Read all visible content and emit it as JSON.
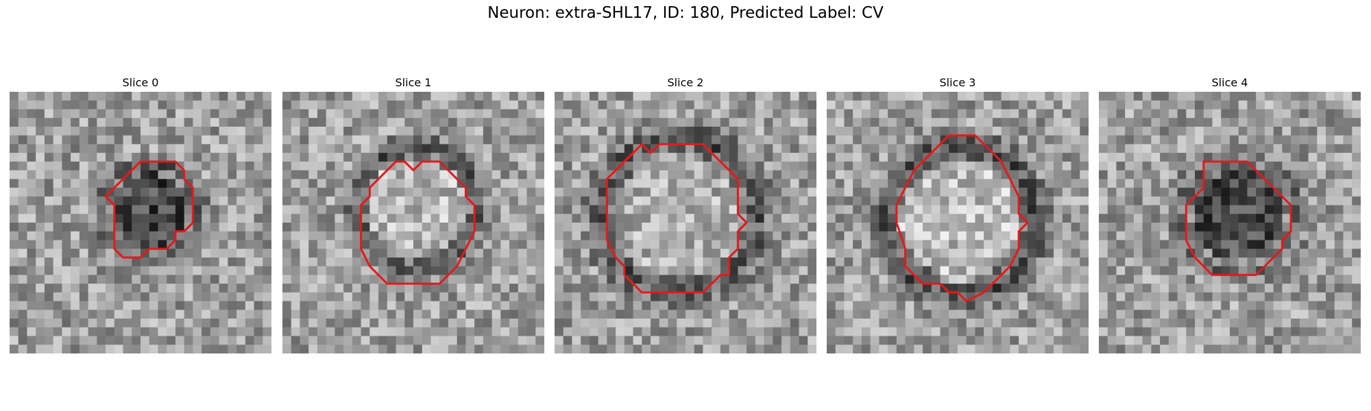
{
  "figure": {
    "title": "Neuron: extra-SHL17, ID: 180, Predicted Label: CV"
  },
  "colors": {
    "contour": "#e31a1c",
    "background": "#ffffff"
  },
  "panels": [
    {
      "title": "Slice 0",
      "seed": 17,
      "dark_ring": 0.55,
      "center_brightness": 0.28,
      "contour": [
        [
          15,
          8
        ],
        [
          19,
          8
        ],
        [
          20,
          9
        ],
        [
          20,
          10
        ],
        [
          21,
          11
        ],
        [
          21,
          15
        ],
        [
          20,
          16
        ],
        [
          19,
          16
        ],
        [
          19,
          17
        ],
        [
          18,
          18
        ],
        [
          16,
          18
        ],
        [
          15,
          19
        ],
        [
          13,
          19
        ],
        [
          12,
          18
        ],
        [
          12,
          17
        ],
        [
          12,
          13
        ],
        [
          11,
          12
        ],
        [
          12,
          11
        ],
        [
          13,
          10
        ],
        [
          14,
          9
        ]
      ]
    },
    {
      "title": "Slice 1",
      "seed": 42,
      "dark_ring": 0.6,
      "center_brightness": 0.72,
      "contour": [
        [
          12,
          9
        ],
        [
          13,
          8
        ],
        [
          14,
          8
        ],
        [
          15,
          9
        ],
        [
          16,
          8
        ],
        [
          18,
          8
        ],
        [
          20,
          10
        ],
        [
          21,
          11
        ],
        [
          21,
          12
        ],
        [
          22,
          13
        ],
        [
          22,
          16
        ],
        [
          21,
          18
        ],
        [
          20,
          20
        ],
        [
          18,
          22
        ],
        [
          12,
          22
        ],
        [
          10,
          20
        ],
        [
          9,
          18
        ],
        [
          9,
          13
        ],
        [
          10,
          12
        ],
        [
          10,
          11
        ],
        [
          11,
          10
        ]
      ]
    },
    {
      "title": "Slice 2",
      "seed": 7,
      "dark_ring": 0.65,
      "center_brightness": 0.68,
      "contour": [
        [
          9,
          7
        ],
        [
          10,
          6
        ],
        [
          11,
          7
        ],
        [
          12,
          6
        ],
        [
          17,
          6
        ],
        [
          18,
          7
        ],
        [
          19,
          8
        ],
        [
          20,
          9
        ],
        [
          21,
          10
        ],
        [
          21,
          14
        ],
        [
          22,
          15
        ],
        [
          21,
          16
        ],
        [
          21,
          18
        ],
        [
          20,
          19
        ],
        [
          20,
          21
        ],
        [
          19,
          21
        ],
        [
          18,
          22
        ],
        [
          17,
          23
        ],
        [
          10,
          23
        ],
        [
          9,
          22
        ],
        [
          8,
          21
        ],
        [
          8,
          20
        ],
        [
          7,
          19
        ],
        [
          6,
          17
        ],
        [
          6,
          10
        ],
        [
          7,
          9
        ],
        [
          8,
          8
        ]
      ]
    },
    {
      "title": "Slice 3",
      "seed": 93,
      "dark_ring": 0.7,
      "center_brightness": 0.74,
      "contour": [
        [
          13,
          6
        ],
        [
          14,
          5
        ],
        [
          17,
          5
        ],
        [
          18,
          6
        ],
        [
          19,
          7
        ],
        [
          20,
          8
        ],
        [
          21,
          10
        ],
        [
          22,
          12
        ],
        [
          22,
          14
        ],
        [
          23,
          15
        ],
        [
          22,
          16
        ],
        [
          22,
          18
        ],
        [
          21,
          20
        ],
        [
          20,
          21
        ],
        [
          19,
          22
        ],
        [
          18,
          23
        ],
        [
          16,
          24
        ],
        [
          15,
          23
        ],
        [
          14,
          23
        ],
        [
          13,
          22
        ],
        [
          11,
          22
        ],
        [
          10,
          21
        ],
        [
          9,
          20
        ],
        [
          9,
          18
        ],
        [
          8,
          15
        ],
        [
          8,
          14
        ],
        [
          8,
          13
        ],
        [
          9,
          11
        ],
        [
          10,
          9
        ],
        [
          11,
          8
        ],
        [
          12,
          7
        ]
      ]
    },
    {
      "title": "Slice 4",
      "seed": 55,
      "dark_ring": 0.45,
      "center_brightness": 0.3,
      "contour": [
        [
          12,
          8
        ],
        [
          13,
          8
        ],
        [
          17,
          8
        ],
        [
          18,
          9
        ],
        [
          19,
          10
        ],
        [
          20,
          11
        ],
        [
          21,
          12
        ],
        [
          22,
          13
        ],
        [
          22,
          16
        ],
        [
          21,
          17
        ],
        [
          21,
          18
        ],
        [
          20,
          19
        ],
        [
          19,
          20
        ],
        [
          18,
          21
        ],
        [
          13,
          21
        ],
        [
          12,
          20
        ],
        [
          11,
          19
        ],
        [
          10,
          17
        ],
        [
          10,
          13
        ],
        [
          11,
          12
        ],
        [
          12,
          11
        ],
        [
          12,
          9
        ]
      ]
    }
  ]
}
